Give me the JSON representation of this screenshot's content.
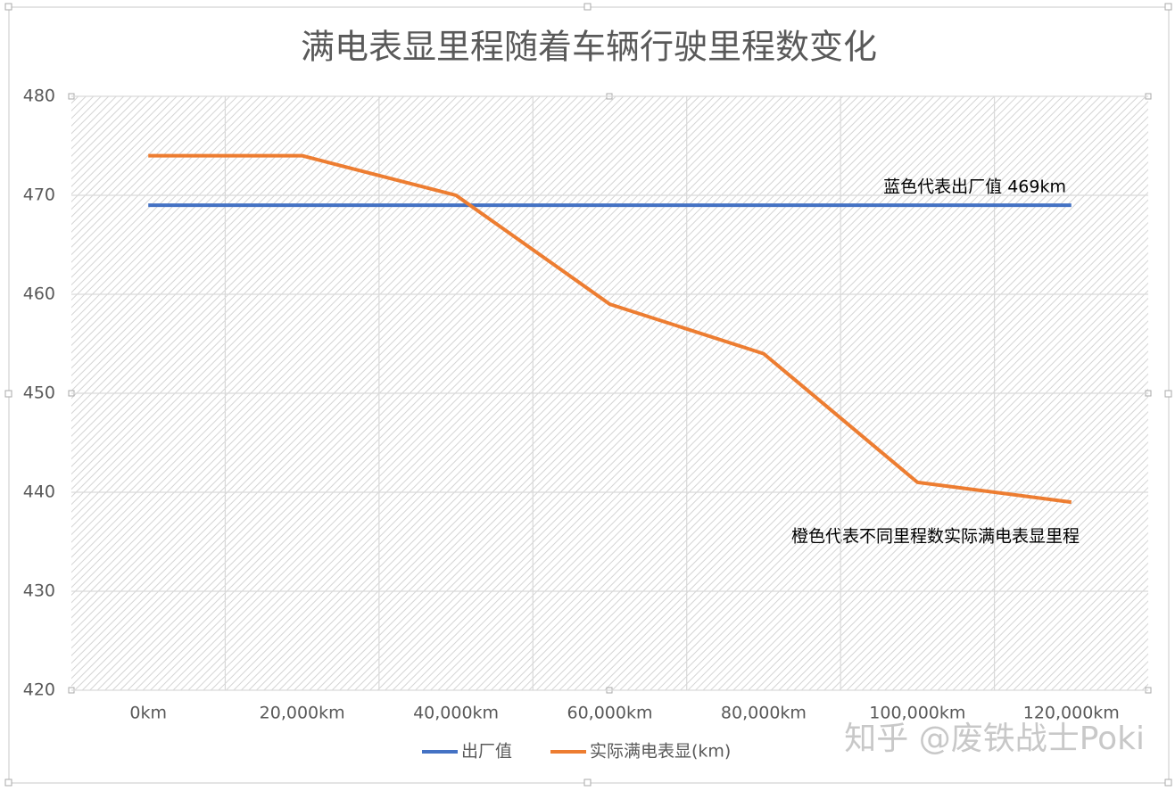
{
  "chart_data": {
    "type": "line",
    "title": "满电表显里程随着车辆行驶里程数变化",
    "categories": [
      "0km",
      "20,000km",
      "40,000km",
      "60,000km",
      "80,000km",
      "100,000km",
      "120,000km"
    ],
    "series": [
      {
        "name": "出厂值",
        "color": "#4472c4",
        "values": [
          469,
          469,
          469,
          469,
          469,
          469,
          469
        ]
      },
      {
        "name": "实际满电表显(km)",
        "color": "#ed7d31",
        "values": [
          474,
          474,
          470,
          459,
          454,
          441,
          439
        ]
      }
    ],
    "ylim": [
      420,
      480
    ],
    "yticks": [
      420,
      430,
      440,
      450,
      460,
      470,
      480
    ],
    "grid": true,
    "legend": "bottom",
    "annotations": [
      "蓝色代表出厂值 469km",
      "橙色代表不同里程数实际满电表显里程"
    ],
    "watermark": "知乎 @废铁战士Poki"
  }
}
